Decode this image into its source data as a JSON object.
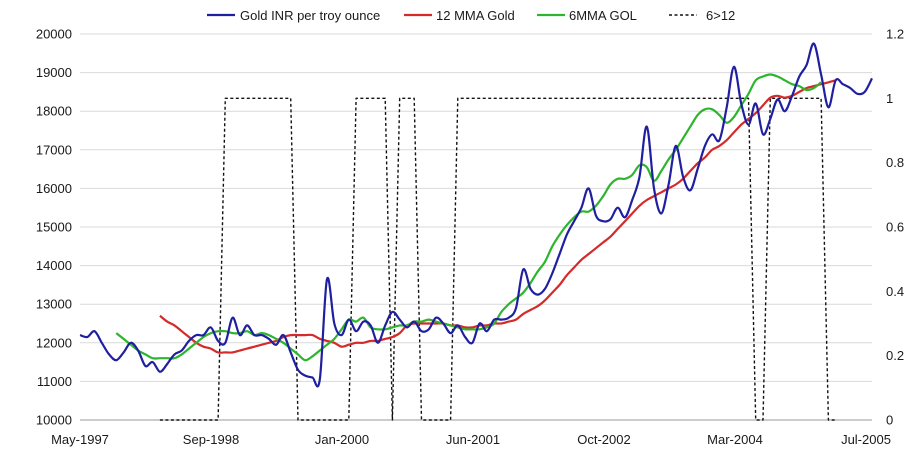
{
  "chart_data": {
    "type": "line",
    "title": "",
    "xlabel": "",
    "ylabel": "",
    "x_tick_labels": [
      "May-1997",
      "Sep-1998",
      "Jan-2000",
      "Jun-2001",
      "Oct-2002",
      "Mar-2004",
      "Jul-2005"
    ],
    "y_ticks": [
      "10000",
      "11000",
      "12000",
      "13000",
      "14000",
      "15000",
      "16000",
      "17000",
      "18000",
      "19000",
      "20000"
    ],
    "y2_ticks": [
      "0",
      "0.2",
      "0.4",
      "0.6",
      "0.8",
      "1",
      "1.2"
    ],
    "ylim": [
      10000,
      20000
    ],
    "y2lim": [
      0,
      1.2
    ],
    "legend_position": "top",
    "grid": "horizontal",
    "series": [
      {
        "name": "Gold INR per troy ounce",
        "color": "#1f1fa0",
        "axis": "left",
        "style": "solid",
        "values": [
          12200,
          12150,
          12300,
          12000,
          11700,
          11550,
          11750,
          12000,
          11800,
          11400,
          11500,
          11250,
          11450,
          11700,
          11800,
          12050,
          12200,
          12200,
          12400,
          12050,
          12000,
          12650,
          12200,
          12450,
          12200,
          12200,
          12100,
          11950,
          12200,
          11750,
          11300,
          11150,
          11100,
          11050,
          13650,
          12500,
          12200,
          12600,
          12300,
          12550,
          12450,
          12000,
          12450,
          12800,
          12600,
          12400,
          12550,
          12300,
          12350,
          12650,
          12500,
          12250,
          12450,
          12150,
          12000,
          12500,
          12300,
          12600,
          12600,
          12650,
          12900,
          13900,
          13400,
          13250,
          13400,
          13800,
          14300,
          14800,
          15150,
          15500,
          16000,
          15300,
          15150,
          15200,
          15500,
          15250,
          15700,
          16300,
          17600,
          16000,
          15350,
          16100,
          17100,
          16300,
          15950,
          16500,
          17100,
          17400,
          17250,
          18100,
          19150,
          18200,
          17650,
          18200,
          17400,
          17800,
          18300,
          18000,
          18400,
          18900,
          19200,
          19750,
          18950,
          18100,
          18800,
          18700,
          18600,
          18450,
          18500,
          18850
        ]
      },
      {
        "name": "12 MMA Gold",
        "color": "#d42a2a",
        "axis": "left",
        "style": "solid",
        "start_index": 11,
        "values": [
          12700,
          12550,
          12450,
          12300,
          12150,
          12000,
          11900,
          11850,
          11750,
          11750,
          11750,
          11800,
          11850,
          11900,
          11950,
          12000,
          12050,
          12150,
          12200,
          12200,
          12200,
          12200,
          12100,
          12050,
          12000,
          11900,
          11950,
          12000,
          12000,
          12050,
          12050,
          12100,
          12150,
          12250,
          12450,
          12500,
          12500,
          12500,
          12500,
          12500,
          12450,
          12450,
          12400,
          12400,
          12450,
          12450,
          12500,
          12500,
          12550,
          12600,
          12750,
          12850,
          12950,
          13100,
          13300,
          13500,
          13750,
          13950,
          14150,
          14300,
          14450,
          14600,
          14750,
          14950,
          15150,
          15350,
          15550,
          15700,
          15800,
          15900,
          16000,
          16100,
          16250,
          16450,
          16650,
          16800,
          17000,
          17100,
          17250,
          17450,
          17650,
          17800,
          17950,
          18150,
          18350,
          18400,
          18350,
          18400,
          18500,
          18600,
          18650,
          18700,
          18750,
          18800
        ]
      },
      {
        "name": "6MMA GOL",
        "color": "#2db52d",
        "axis": "left",
        "style": "solid",
        "start_index": 5,
        "values": [
          12250,
          12100,
          11950,
          11800,
          11700,
          11600,
          11600,
          11600,
          11600,
          11700,
          11850,
          12000,
          12150,
          12250,
          12300,
          12300,
          12250,
          12250,
          12300,
          12200,
          12250,
          12200,
          12100,
          12000,
          11850,
          11700,
          11550,
          11650,
          11800,
          11950,
          12100,
          12350,
          12600,
          12550,
          12650,
          12400,
          12350,
          12350,
          12400,
          12450,
          12450,
          12550,
          12550,
          12600,
          12550,
          12500,
          12450,
          12400,
          12350,
          12350,
          12350,
          12400,
          12500,
          12800,
          13000,
          13150,
          13300,
          13550,
          13850,
          14100,
          14500,
          14800,
          15050,
          15250,
          15400,
          15400,
          15550,
          15800,
          16100,
          16250,
          16250,
          16350,
          16600,
          16550,
          16200,
          16450,
          16750,
          17000,
          17300,
          17600,
          17900,
          18050,
          18050,
          17900,
          17700,
          17850,
          18150,
          18450,
          18800,
          18900,
          18950,
          18900,
          18800,
          18700,
          18650,
          18550,
          18600,
          18750
        ]
      },
      {
        "name": "6>12",
        "color": "#111111",
        "axis": "right",
        "style": "dashed",
        "start_index": 11,
        "values": [
          0,
          0,
          0,
          0,
          0,
          0,
          0,
          0,
          0,
          1,
          1,
          1,
          1,
          1,
          1,
          1,
          1,
          1,
          1,
          0,
          0,
          0,
          0,
          0,
          0,
          0,
          0,
          1,
          1,
          1,
          1,
          1,
          0,
          1,
          1,
          1,
          0,
          0,
          0,
          0,
          0,
          1,
          1,
          1,
          1,
          1,
          1,
          1,
          1,
          1,
          1,
          1,
          1,
          1,
          1,
          1,
          1,
          1,
          1,
          1,
          1,
          1,
          1,
          1,
          1,
          1,
          1,
          1,
          1,
          1,
          1,
          1,
          1,
          1,
          1,
          1,
          1,
          1,
          1,
          1,
          1,
          1,
          0,
          0,
          1,
          1,
          1,
          1,
          1,
          1,
          1,
          1,
          0,
          0
        ]
      }
    ]
  }
}
